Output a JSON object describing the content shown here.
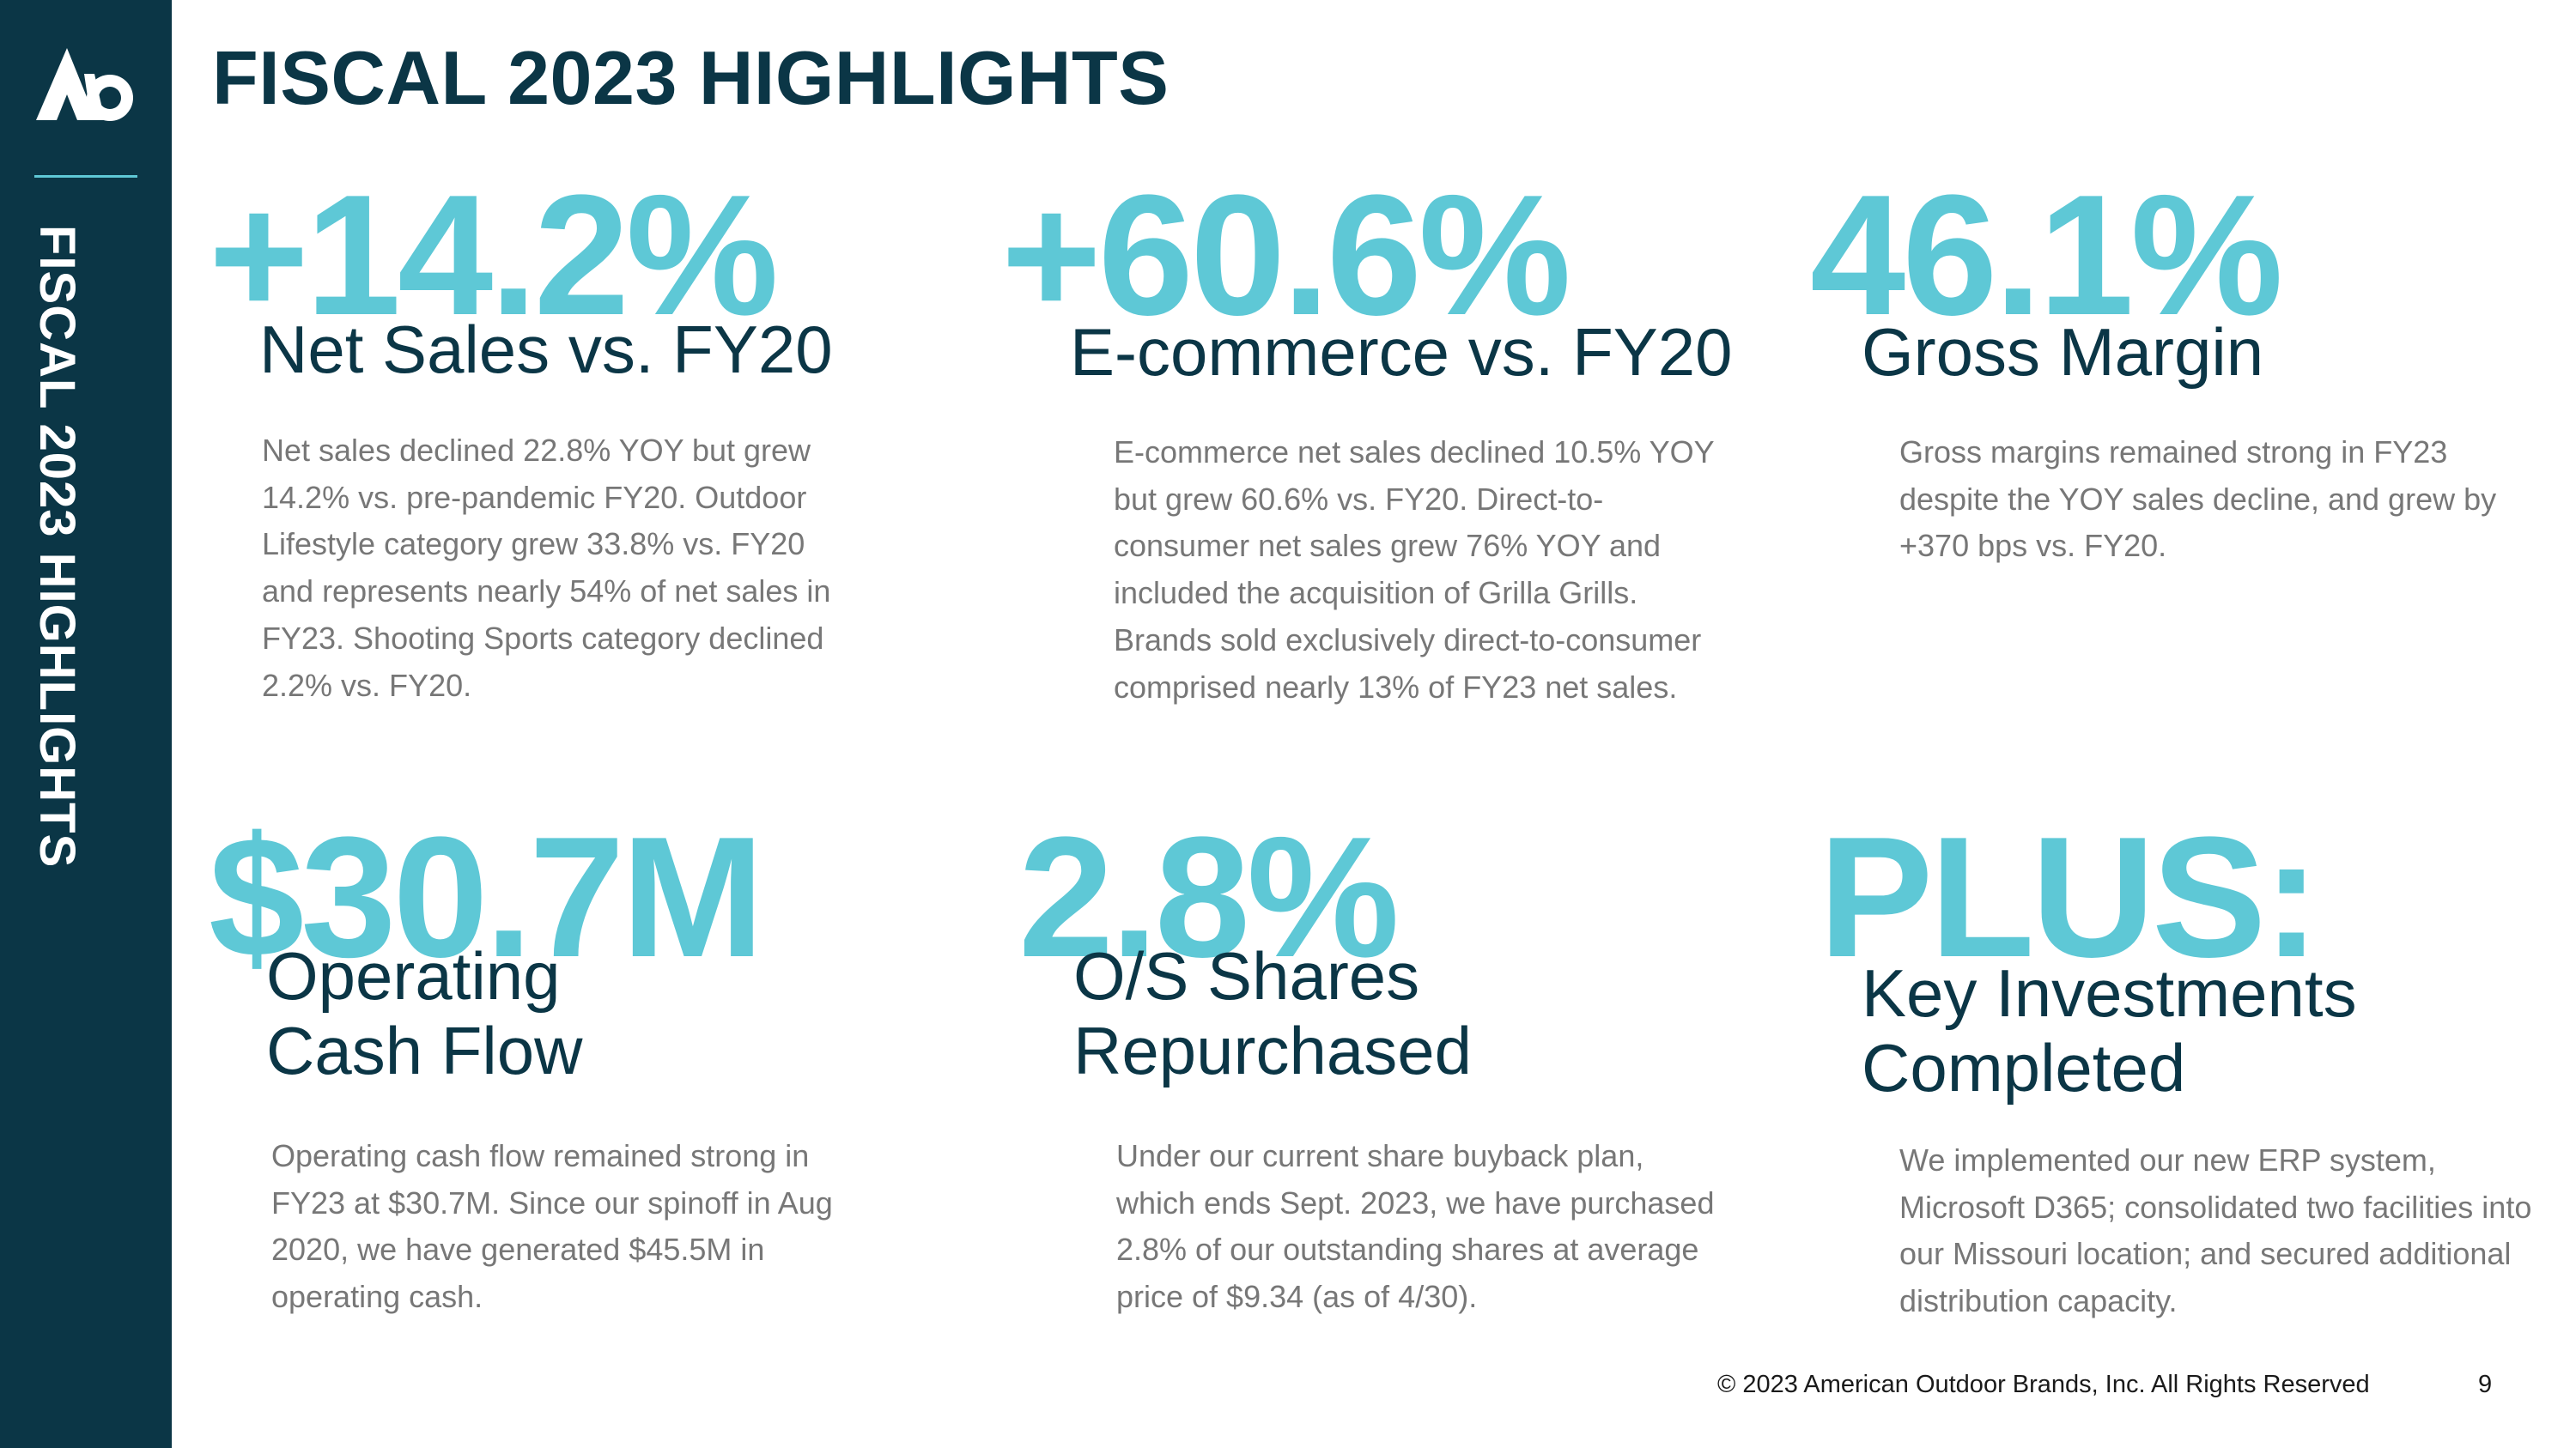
{
  "sidebar": {
    "label": "FISCAL 2023 HIGHLIGHTS",
    "logo_icon": "company-logo-icon"
  },
  "title": "FISCAL 2023 HIGHLIGHTS",
  "colors": {
    "navy": "#0b3646",
    "accent": "#5ec8d6",
    "body_text": "#777777"
  },
  "highlights": [
    {
      "value": "+14.2%",
      "label_lines": [
        "Net Sales vs. FY20"
      ],
      "body": "Net sales declined 22.8% YOY but grew 14.2% vs. pre-pandemic FY20. Outdoor Lifestyle category grew 33.8% vs. FY20 and represents nearly 54% of net sales in FY23. Shooting Sports category declined 2.2% vs. FY20."
    },
    {
      "value": "+60.6%",
      "label_lines": [
        "E-commerce vs. FY20"
      ],
      "body": "E-commerce net sales declined 10.5% YOY but grew 60.6% vs. FY20. Direct-to-consumer net sales grew 76% YOY and included the acquisition of Grilla Grills. Brands sold exclusively direct-to-consumer comprised nearly 13% of FY23 net sales."
    },
    {
      "value": "46.1%",
      "label_lines": [
        "Gross Margin"
      ],
      "body": "Gross margins remained strong in FY23 despite the YOY sales decline, and grew by +370 bps vs. FY20."
    },
    {
      "value": "$30.7M",
      "label_lines": [
        "Operating",
        "Cash Flow"
      ],
      "body": "Operating cash flow remained strong in FY23 at $30.7M. Since our spinoff in Aug 2020, we have generated $45.5M in operating cash."
    },
    {
      "value": "2.8%",
      "label_lines": [
        "O/S Shares",
        "Repurchased"
      ],
      "body": "Under our current share buyback plan, which ends Sept. 2023, we have purchased 2.8% of our outstanding shares at average price of $9.34 (as of 4/30)."
    },
    {
      "value": "PLUS:",
      "label_lines": [
        "Key Investments",
        "Completed"
      ],
      "body": "We implemented our new ERP system, Microsoft D365; consolidated two facilities into our Missouri location; and secured additional distribution capacity."
    }
  ],
  "footer": {
    "copyright": "© 2023 American Outdoor Brands, Inc. All Rights Reserved",
    "page_number": "9"
  }
}
